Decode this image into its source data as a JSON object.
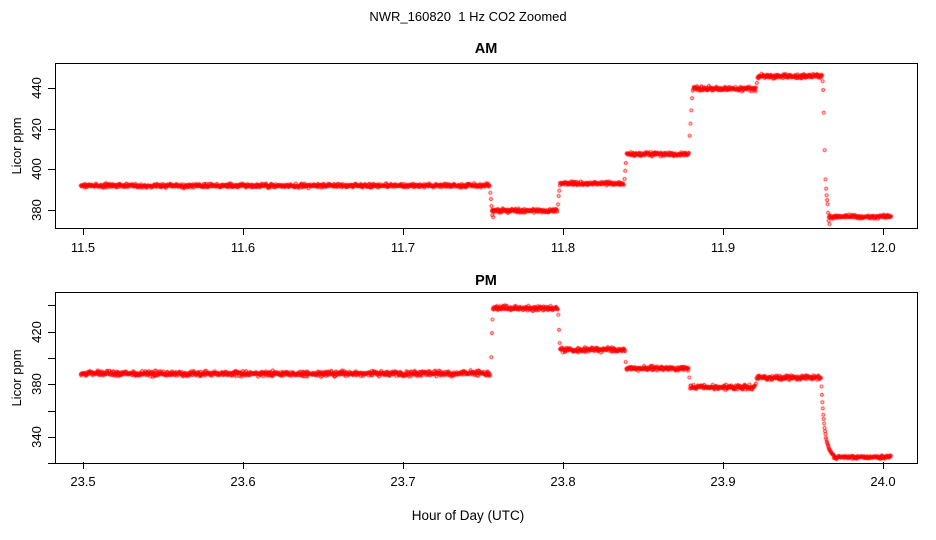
{
  "figure": {
    "title": "NWR_160820  1 Hz CO2 Zoomed",
    "background": "#FFFFFF",
    "text_color": "#000000"
  },
  "chart_data": [
    {
      "type": "scatter",
      "panel": "AM",
      "title": "AM",
      "ylabel": "Licor ppm",
      "xlabel": "",
      "marker": "open-circle",
      "point_color": "#FF0000",
      "grid": false,
      "xlim": [
        11.4825,
        12.0213
      ],
      "ylim": [
        371.2,
        452.3
      ],
      "xticks": [
        11.5,
        11.6,
        11.7,
        11.8,
        11.9,
        12.0
      ],
      "xtick_labels": [
        "11.5",
        "11.6",
        "11.7",
        "11.8",
        "11.9",
        "12.0"
      ],
      "yticks": [
        380,
        400,
        420,
        440
      ],
      "ytick_labels": [
        "380",
        "400",
        "420",
        "440"
      ],
      "sample_rate_hz": 1,
      "segments": [
        {
          "t_start": 11.498,
          "t_end": 11.7536,
          "level": 392.5,
          "noise": 0.9
        },
        {
          "t_start": 11.755,
          "t_end": 11.796,
          "level": 380.2,
          "noise": 1.0
        },
        {
          "t_start": 11.7974,
          "t_end": 11.8376,
          "level": 393.6,
          "noise": 0.9
        },
        {
          "t_start": 11.8392,
          "t_end": 11.8782,
          "level": 408.0,
          "noise": 0.9
        },
        {
          "t_start": 11.8806,
          "t_end": 11.9202,
          "level": 440.2,
          "noise": 1.0
        },
        {
          "t_start": 11.921,
          "t_end": 11.9614,
          "level": 446.3,
          "noise": 1.0
        },
        {
          "t_start": 11.9656,
          "t_end": 12.0045,
          "level": 377.2,
          "noise": 0.8
        }
      ],
      "transition_points": [
        [
          11.754,
          389.0
        ],
        [
          11.7544,
          385.9
        ],
        [
          11.7547,
          382.5
        ],
        [
          11.7552,
          378.0
        ],
        [
          11.7558,
          377.0
        ],
        [
          11.7963,
          383.3
        ],
        [
          11.7967,
          387.4
        ],
        [
          11.7971,
          390.0
        ],
        [
          11.8379,
          395.8
        ],
        [
          11.8383,
          399.8
        ],
        [
          11.8387,
          403.6
        ],
        [
          11.8786,
          417.0
        ],
        [
          11.8791,
          423.0
        ],
        [
          11.8796,
          429.5
        ],
        [
          11.8801,
          435.5
        ],
        [
          11.9206,
          443.0
        ],
        [
          11.9617,
          443.8
        ],
        [
          11.962,
          439.5
        ],
        [
          11.9624,
          428.4
        ],
        [
          11.963,
          409.9
        ],
        [
          11.9635,
          395.6
        ],
        [
          11.9639,
          391.0
        ],
        [
          11.9642,
          387.8
        ],
        [
          11.9645,
          385.4
        ],
        [
          11.9648,
          383.4
        ],
        [
          11.9651,
          379.2
        ],
        [
          11.9655,
          375.2
        ],
        [
          11.966,
          373.6
        ]
      ]
    },
    {
      "type": "scatter",
      "panel": "PM",
      "title": "PM",
      "ylabel": "Licor ppm",
      "xlabel": "Hour of Day (UTC)",
      "marker": "open-circle",
      "point_color": "#FF0000",
      "grid": false,
      "xlim": [
        23.4825,
        24.0213
      ],
      "ylim": [
        321.1,
        450.2
      ],
      "xticks": [
        23.5,
        23.6,
        23.7,
        23.8,
        23.9,
        24.0
      ],
      "xtick_labels": [
        "23.5",
        "23.6",
        "23.7",
        "23.8",
        "23.9",
        "24.0"
      ],
      "yticks": [
        320,
        340,
        360,
        380,
        400,
        420,
        440
      ],
      "ytick_labels": [
        "",
        "340",
        "",
        "380",
        "",
        "420",
        ""
      ],
      "sample_rate_hz": 1,
      "segments": [
        {
          "t_start": 23.498,
          "t_end": 23.754,
          "level": 389.0,
          "noise": 1.9
        },
        {
          "t_start": 23.7556,
          "t_end": 23.7962,
          "level": 438.6,
          "noise": 1.7
        },
        {
          "t_start": 23.7976,
          "t_end": 23.8383,
          "level": 407.0,
          "noise": 1.6
        },
        {
          "t_start": 23.839,
          "t_end": 23.8781,
          "level": 393.0,
          "noise": 1.6
        },
        {
          "t_start": 23.8788,
          "t_end": 23.9196,
          "level": 378.6,
          "noise": 1.6
        },
        {
          "t_start": 23.9204,
          "t_end": 23.9604,
          "level": 386.0,
          "noise": 1.6
        },
        {
          "t_start": 23.9688,
          "t_end": 24.0045,
          "level": 325.6,
          "noise": 1.2
        }
      ],
      "decay": {
        "t_start": 23.9607,
        "t_end": 23.969,
        "from": 386.0,
        "to": 325.6,
        "tau_seconds": 8
      },
      "transition_points": [
        [
          23.7546,
          401.4
        ],
        [
          23.755,
          419.7
        ],
        [
          23.7553,
          430.0
        ],
        [
          23.7965,
          433.7
        ],
        [
          23.7969,
          422.2
        ],
        [
          23.7973,
          412.2
        ],
        [
          23.8386,
          397.8
        ],
        [
          23.8784,
          386.0
        ],
        [
          23.92,
          381.5
        ]
      ]
    }
  ]
}
